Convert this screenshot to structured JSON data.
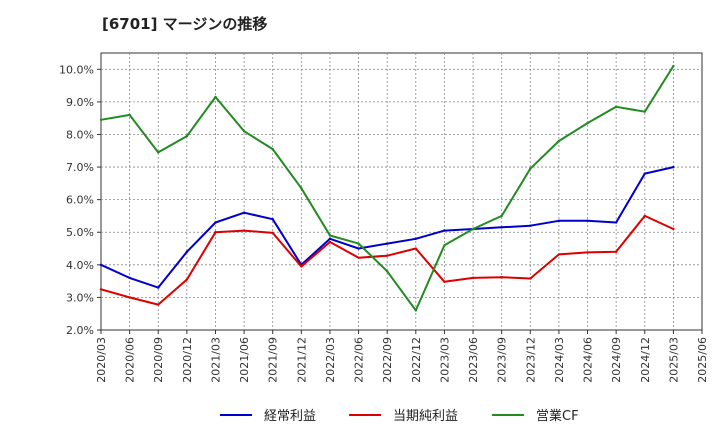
{
  "chart_data": {
    "type": "line",
    "title": "[6701]  マージンの推移",
    "xlabel": "",
    "ylabel": "",
    "x": [
      "2020/03",
      "2020/06",
      "2020/09",
      "2020/12",
      "2021/03",
      "2021/06",
      "2021/09",
      "2021/12",
      "2022/03",
      "2022/06",
      "2022/09",
      "2022/12",
      "2023/03",
      "2023/06",
      "2023/09",
      "2023/12",
      "2024/03",
      "2024/06",
      "2024/09",
      "2024/12",
      "2025/03",
      "2025/06"
    ],
    "ylim": [
      2.0,
      10.5
    ],
    "yticks": [
      2.0,
      3.0,
      4.0,
      5.0,
      6.0,
      7.0,
      8.0,
      9.0,
      10.0
    ],
    "ytick_labels": [
      "2.0%",
      "3.0%",
      "4.0%",
      "5.0%",
      "6.0%",
      "7.0%",
      "8.0%",
      "9.0%",
      "10.0%"
    ],
    "grid": true,
    "legend_position": "bottom",
    "series": [
      {
        "name": "経常利益",
        "color": "#0000cc",
        "values": [
          4.0,
          3.6,
          3.3,
          4.4,
          5.3,
          5.6,
          5.4,
          4.0,
          4.8,
          4.5,
          4.65,
          4.8,
          5.05,
          5.1,
          5.15,
          5.2,
          5.35,
          5.35,
          5.3,
          6.8,
          7.0,
          null
        ]
      },
      {
        "name": "当期純利益",
        "color": "#dd0000",
        "values": [
          3.25,
          3.0,
          2.78,
          3.55,
          5.0,
          5.05,
          4.98,
          3.95,
          4.7,
          4.22,
          4.28,
          4.5,
          3.48,
          3.6,
          3.62,
          3.58,
          4.32,
          4.38,
          4.4,
          5.5,
          5.1,
          null
        ]
      },
      {
        "name": "営業CF",
        "color": "#228b22",
        "values": [
          8.45,
          8.6,
          7.45,
          7.95,
          9.15,
          8.1,
          7.55,
          6.35,
          4.9,
          4.65,
          3.8,
          2.6,
          4.6,
          5.1,
          5.5,
          6.95,
          7.8,
          8.35,
          8.85,
          8.7,
          10.1,
          null
        ]
      }
    ]
  }
}
